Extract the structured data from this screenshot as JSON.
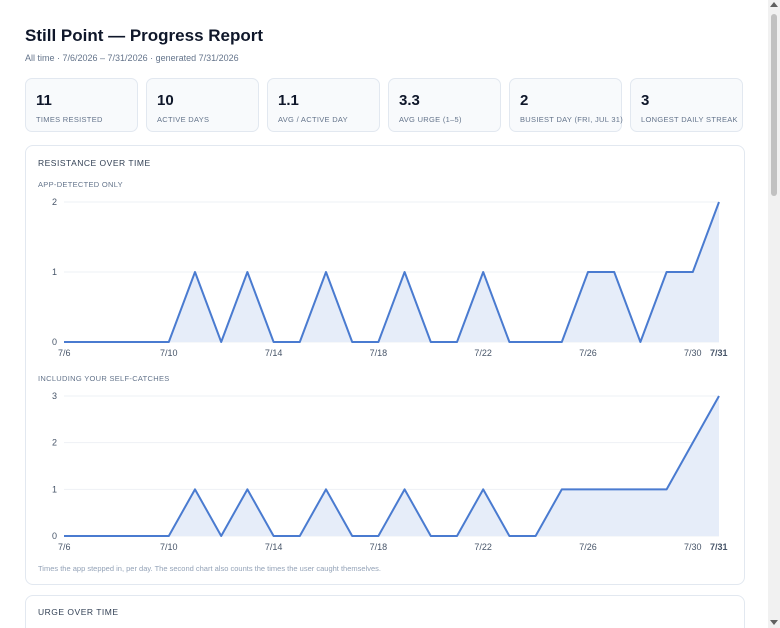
{
  "header": {
    "title": "Still Point — Progress Report",
    "subtitle": "All time · 7/6/2026 – 7/31/2026 · generated 7/31/2026"
  },
  "stats": [
    {
      "value": "11",
      "label": "Times resisted"
    },
    {
      "value": "10",
      "label": "Active days"
    },
    {
      "value": "1.1",
      "label": "Avg / active day"
    },
    {
      "value": "3.3",
      "label": "Avg urge (1–5)"
    },
    {
      "value": "2",
      "label": "Busiest day (Fri, Jul 31)"
    },
    {
      "value": "3",
      "label": "Longest daily streak"
    }
  ],
  "resistance_panel": {
    "title": "RESISTANCE OVER TIME",
    "note": "Times the app stepped in, per day. The second chart also counts the times the user caught themselves."
  },
  "urge_panel": {
    "title": "URGE OVER TIME"
  },
  "colors": {
    "line": "#4a7bd0",
    "fill": "#e6edf9",
    "grid": "#eef1f5"
  },
  "chart_data": [
    {
      "type": "area",
      "title": "APP-DETECTED ONLY",
      "x": [
        "7/6",
        "7/7",
        "7/8",
        "7/9",
        "7/10",
        "7/11",
        "7/12",
        "7/13",
        "7/14",
        "7/15",
        "7/16",
        "7/17",
        "7/18",
        "7/19",
        "7/20",
        "7/21",
        "7/22",
        "7/23",
        "7/24",
        "7/25",
        "7/26",
        "7/27",
        "7/28",
        "7/29",
        "7/30",
        "7/31"
      ],
      "values": [
        0,
        0,
        0,
        0,
        0,
        1,
        0,
        1,
        0,
        0,
        1,
        0,
        0,
        1,
        0,
        0,
        1,
        0,
        0,
        0,
        1,
        1,
        0,
        1,
        1,
        2
      ],
      "x_tick_labels": [
        "7/6",
        "7/10",
        "7/14",
        "7/18",
        "7/22",
        "7/26",
        "7/30",
        "7/31"
      ],
      "y_ticks": [
        0,
        1,
        2
      ],
      "ylim": [
        0,
        2
      ],
      "grid": true
    },
    {
      "type": "area",
      "title": "INCLUDING YOUR SELF-CATCHES",
      "x": [
        "7/6",
        "7/7",
        "7/8",
        "7/9",
        "7/10",
        "7/11",
        "7/12",
        "7/13",
        "7/14",
        "7/15",
        "7/16",
        "7/17",
        "7/18",
        "7/19",
        "7/20",
        "7/21",
        "7/22",
        "7/23",
        "7/24",
        "7/25",
        "7/26",
        "7/27",
        "7/28",
        "7/29",
        "7/30",
        "7/31"
      ],
      "values": [
        0,
        0,
        0,
        0,
        0,
        1,
        0,
        1,
        0,
        0,
        1,
        0,
        0,
        1,
        0,
        0,
        1,
        0,
        0,
        1,
        1,
        1,
        1,
        1,
        2,
        3
      ],
      "x_tick_labels": [
        "7/6",
        "7/10",
        "7/14",
        "7/18",
        "7/22",
        "7/26",
        "7/30",
        "7/31"
      ],
      "y_ticks": [
        0,
        1,
        2,
        3
      ],
      "ylim": [
        0,
        3
      ],
      "grid": true
    }
  ]
}
